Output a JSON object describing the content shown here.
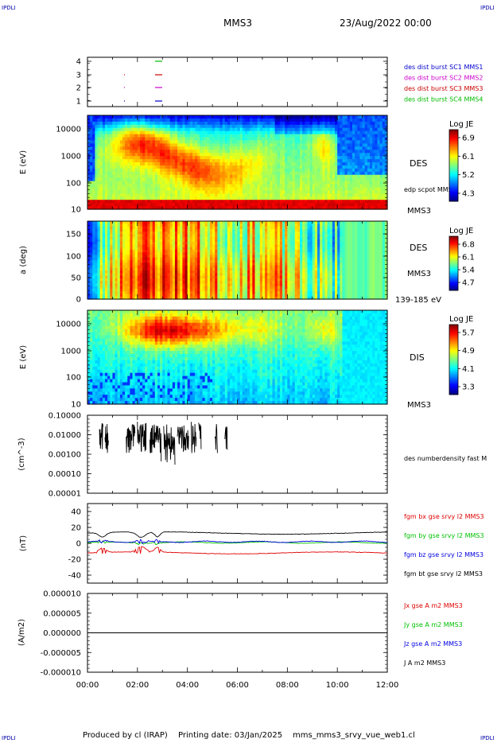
{
  "corner_label": "IPDLI",
  "header": {
    "spacecraft": "MMS3",
    "date": "23/Aug/2022 00:00"
  },
  "footer": {
    "produced": "Produced by cl (IRAP)",
    "printing": "Printing date: 03/Jan/2025",
    "filename": "mms_mms3_srvy_vue_web1.cl"
  },
  "time_axis": {
    "start_hour": 0,
    "end_hour": 12,
    "ticks": [
      "00:00",
      "02:00",
      "04:00",
      "06:00",
      "08:00",
      "10:00",
      "12:00"
    ]
  },
  "colors": {
    "bx": "#e00000",
    "by": "#00c000",
    "bz": "#0000e0",
    "bt": "#000000"
  },
  "chart_data": [
    {
      "type": "scatter",
      "ytick_labels": [
        "4",
        "3",
        "2",
        "1"
      ],
      "legend": [
        {
          "name": "des dist burst SC1 MMS1",
          "color": "#0000cc"
        },
        {
          "name": "des dist burst SC2 MMS2",
          "color": "#cc00cc"
        },
        {
          "name": "des dist burst SC3 MMS3",
          "color": "#cc0000"
        },
        {
          "name": "des dist burst SC4 MMS4",
          "color": "#00bb00"
        }
      ]
    },
    {
      "type": "heatmap",
      "ylabel": "E (eV)",
      "yscale": "log",
      "ylim": [
        10,
        30000
      ],
      "ytick_labels": [
        "10000",
        "1000",
        "100",
        "10"
      ],
      "cbar_title": "Log JE",
      "cbar_ticks": [
        "6.9",
        "6.1",
        "5.2",
        "4.3"
      ],
      "right_labels": [
        "DES",
        "edp scpot MMS3",
        "MMS3"
      ]
    },
    {
      "type": "heatmap",
      "ylabel": "a (deg)",
      "ylim": [
        0,
        180
      ],
      "ytick_labels": [
        "150",
        "100",
        "50",
        "0"
      ],
      "cbar_title": "Log JE",
      "cbar_ticks": [
        "6.8",
        "6.1",
        "5.4",
        "4.7"
      ],
      "right_labels": [
        "DES",
        "MMS3",
        "139-185 eV"
      ]
    },
    {
      "type": "heatmap",
      "ylabel": "E (eV)",
      "yscale": "log",
      "ylim": [
        10,
        30000
      ],
      "ytick_labels": [
        "10000",
        "1000",
        "100",
        "10"
      ],
      "cbar_title": "Log JE",
      "cbar_ticks": [
        "5.7",
        "4.9",
        "4.1",
        "3.3"
      ],
      "right_labels": [
        "DIS",
        "MMS3"
      ]
    },
    {
      "type": "line",
      "ylabel": "(cm^-3)",
      "yscale": "log",
      "ytick_labels": [
        "0.10000",
        "0.01000",
        "0.00100",
        "0.00010",
        "0.00001"
      ],
      "series": [
        {
          "name": "des numberdensity fast M"
        }
      ]
    },
    {
      "type": "line",
      "ylabel": "(nT)",
      "ylim": [
        -50,
        50
      ],
      "ytick_labels": [
        "40",
        "20",
        "0",
        "-20",
        "-40"
      ],
      "series": [
        {
          "name": "fgm bx gse srvy l2 MMS3",
          "baseline": -12
        },
        {
          "name": "fgm by gse srvy l2 MMS3",
          "baseline": 1
        },
        {
          "name": "fgm bz gse srvy l2 MMS3",
          "baseline": 2
        },
        {
          "name": "fgm bt gse srvy l2 MMS3",
          "baseline": 13
        }
      ]
    },
    {
      "type": "line",
      "ylabel": "(A/m2)",
      "ylim": [
        -1e-05,
        1e-05
      ],
      "ytick_labels": [
        "0.000010",
        "0.000005",
        "0.000000",
        "-0.000005",
        "-0.000010"
      ],
      "series": [
        {
          "name": "Jx gse A m2 MMS3"
        },
        {
          "name": "Jy gse A m2 MMS3"
        },
        {
          "name": "Jz gse A m2 MMS3"
        },
        {
          "name": "J A m2 MMS3"
        }
      ]
    }
  ]
}
